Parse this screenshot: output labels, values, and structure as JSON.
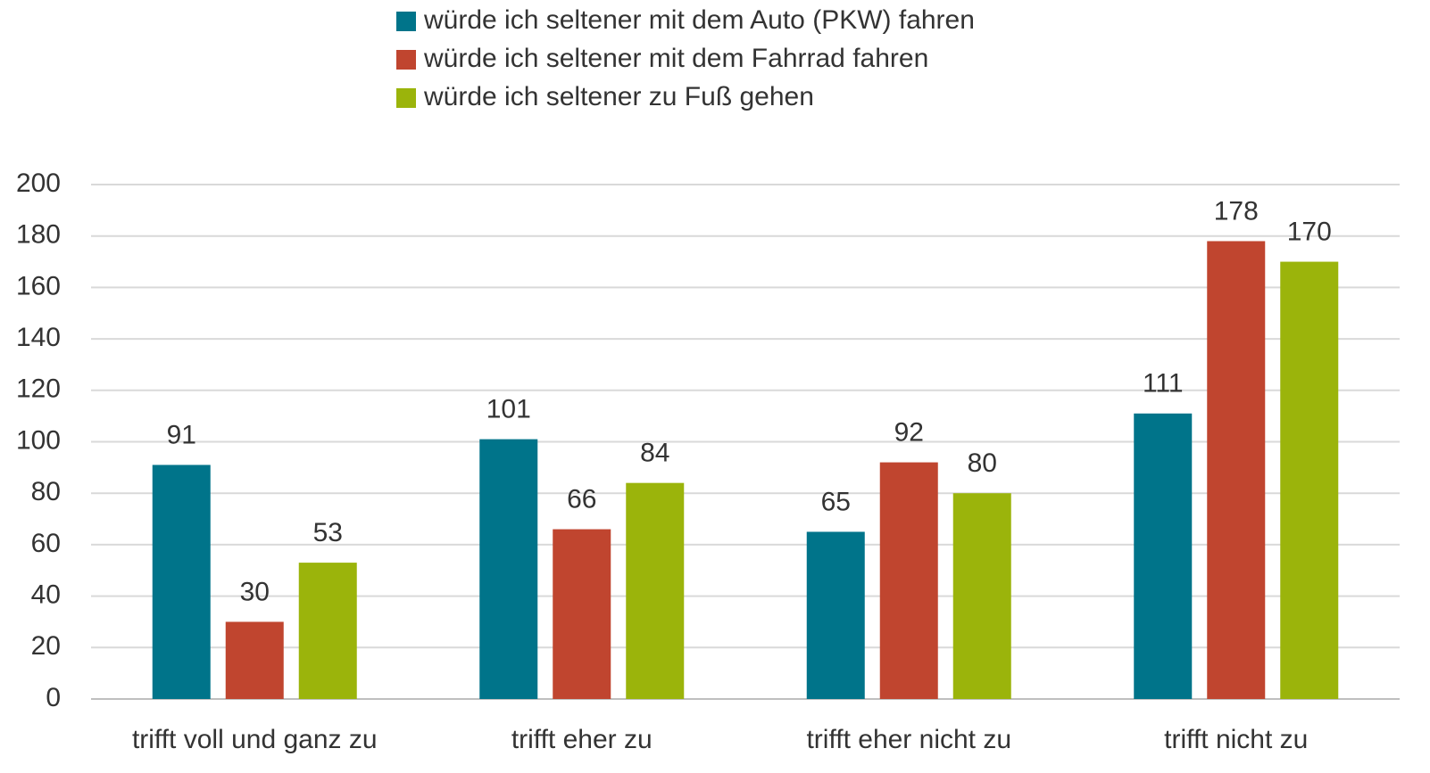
{
  "chart_data": {
    "type": "bar",
    "categories": [
      "trifft voll und ganz zu",
      "trifft eher zu",
      "trifft eher nicht zu",
      "trifft nicht zu"
    ],
    "series": [
      {
        "name": "würde ich seltener mit dem Auto (PKW) fahren",
        "color": "#00748a",
        "values": [
          91,
          101,
          65,
          111
        ]
      },
      {
        "name": "würde ich seltener mit dem Fahrrad fahren",
        "color": "#c0452f",
        "values": [
          30,
          66,
          92,
          178
        ]
      },
      {
        "name": "würde ich seltener zu Fuß gehen",
        "color": "#9bb40b",
        "values": [
          53,
          84,
          80,
          170
        ]
      }
    ],
    "ylim": [
      0,
      200
    ],
    "yticks": [
      0,
      20,
      40,
      60,
      80,
      100,
      120,
      140,
      160,
      180,
      200
    ],
    "grid": true,
    "legend": "top"
  }
}
